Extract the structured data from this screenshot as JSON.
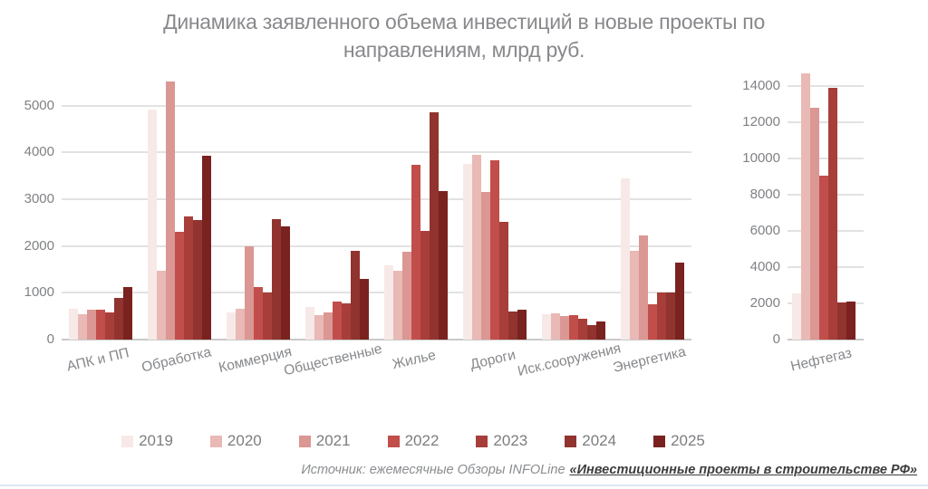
{
  "title": {
    "line1": "Динамика заявленного объема инвестиций в новые проекты по",
    "line2": "направлениям, млрд руб."
  },
  "legend": {
    "years": [
      {
        "label": "2019",
        "color": "#f7e9e7"
      },
      {
        "label": "2020",
        "color": "#e9b9b5"
      },
      {
        "label": "2021",
        "color": "#db9793"
      },
      {
        "label": "2022",
        "color": "#c14e4a"
      },
      {
        "label": "2023",
        "color": "#a83e3a"
      },
      {
        "label": "2024",
        "color": "#91332f"
      },
      {
        "label": "2025",
        "color": "#7a221f"
      }
    ]
  },
  "source": {
    "prefix": "Источник: ежемесячные Обзоры INFOLine",
    "link": "«Инвестиционные проекты в строительстве РФ»"
  },
  "chart_data": [
    {
      "type": "bar",
      "title": "Динамика заявленного объема инвестиций в новые проекты по направлениям, млрд руб.",
      "categories": [
        "АПК и ПП",
        "Обработка",
        "Коммерция",
        "Общественные",
        "Жилье",
        "Дороги",
        "Иск.сооружения",
        "Энергетика"
      ],
      "series": [
        {
          "year": "2019",
          "values": [
            660,
            4920,
            580,
            690,
            1590,
            3760,
            540,
            3440
          ]
        },
        {
          "year": "2020",
          "values": [
            550,
            1470,
            650,
            530,
            1480,
            3940,
            570,
            1900
          ]
        },
        {
          "year": "2021",
          "values": [
            640,
            5520,
            2000,
            590,
            1870,
            3150,
            500,
            2220
          ]
        },
        {
          "year": "2022",
          "values": [
            630,
            2310,
            1120,
            820,
            3730,
            3830,
            520,
            760
          ]
        },
        {
          "year": "2023",
          "values": [
            580,
            2630,
            1000,
            780,
            2320,
            2520,
            440,
            1000
          ]
        },
        {
          "year": "2024",
          "values": [
            890,
            2560,
            2580,
            1890,
            4860,
            600,
            310,
            1000
          ]
        },
        {
          "year": "2025",
          "values": [
            1120,
            3930,
            2420,
            1300,
            3170,
            640,
            390,
            1650
          ]
        }
      ],
      "ylim": [
        0,
        5520
      ],
      "yticks": [
        0,
        1000,
        2000,
        3000,
        4000,
        5000
      ],
      "grid": true,
      "legend_position": "bottom"
    },
    {
      "type": "bar",
      "title": "Нефтегаз",
      "categories": [
        "Нефтегаз"
      ],
      "series": [
        {
          "year": "2019",
          "values": [
            2550
          ]
        },
        {
          "year": "2020",
          "values": [
            14700
          ]
        },
        {
          "year": "2021",
          "values": [
            12800
          ]
        },
        {
          "year": "2022",
          "values": [
            9050
          ]
        },
        {
          "year": "2023",
          "values": [
            13900
          ]
        },
        {
          "year": "2024",
          "values": [
            2050
          ]
        },
        {
          "year": "2025",
          "values": [
            2100
          ]
        }
      ],
      "ylim": [
        0,
        14700
      ],
      "yticks": [
        0,
        2000,
        4000,
        6000,
        8000,
        10000,
        12000,
        14000
      ],
      "grid": true,
      "legend_position": "bottom"
    }
  ]
}
